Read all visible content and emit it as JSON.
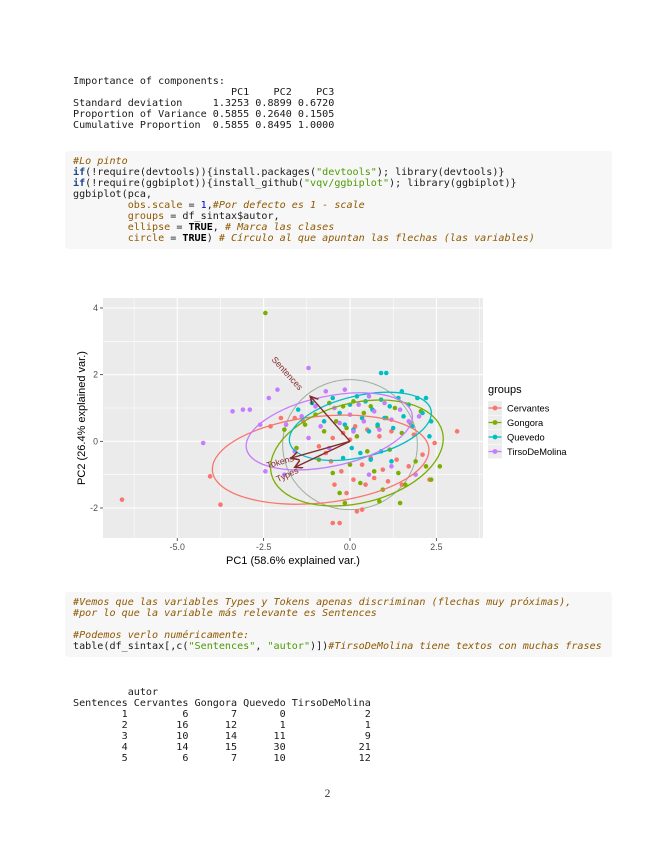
{
  "page": {
    "number": "2"
  },
  "colors": {
    "code_bg": "#f7f7f7",
    "code_keyword": "#204a87",
    "code_string": "#4e9a06",
    "code_comment": "#8f5902",
    "code_other": "#8f5902",
    "code_number": "#0000cf",
    "code_constant": "#000000"
  },
  "pca_summary": {
    "title": "Importance of components:",
    "components": [
      "PC1",
      "PC2",
      "PC3"
    ],
    "standard_deviation": [
      1.3253,
      0.8899,
      0.672
    ],
    "proportion_of_variance": [
      0.5855,
      0.264,
      0.1505
    ],
    "cumulative_proportion": [
      0.5855,
      0.8495,
      1.0
    ],
    "lines": [
      "Importance of components:",
      "                          PC1    PC2    PC3",
      "Standard deviation     1.3253 0.8899 0.6720",
      "Proportion of Variance 0.5855 0.2640 0.1505",
      "Cumulative Proportion  0.5855 0.8495 1.0000"
    ]
  },
  "code_block_1": {
    "lines": [
      [
        [
          "co",
          "#Lo pinto"
        ]
      ],
      [
        [
          "kw",
          "if"
        ],
        [
          "pl",
          "(!require(devtools)){install.packages("
        ],
        [
          "st",
          "\"devtools\""
        ],
        [
          "pl",
          "); library(devtools)}"
        ]
      ],
      [
        [
          "kw",
          "if"
        ],
        [
          "pl",
          "(!require(ggbiplot)){install_github("
        ],
        [
          "st",
          "\"vqv/ggbiplot\""
        ],
        [
          "pl",
          "); library(ggbiplot)}"
        ]
      ],
      [
        [
          "pl",
          "ggbiplot(pca,"
        ]
      ],
      [
        [
          "pl",
          "         "
        ],
        [
          "ot",
          "obs.scale"
        ],
        [
          "pl",
          " = "
        ],
        [
          "dv",
          "1"
        ],
        [
          "pl",
          ","
        ],
        [
          "co",
          "#Por defecto es 1 - scale"
        ]
      ],
      [
        [
          "pl",
          "         "
        ],
        [
          "ot",
          "groups"
        ],
        [
          "pl",
          " = df_sintax$autor,"
        ]
      ],
      [
        [
          "pl",
          "         "
        ],
        [
          "ot",
          "ellipse"
        ],
        [
          "pl",
          " = "
        ],
        [
          "cn",
          "TRUE"
        ],
        [
          "pl",
          ", "
        ],
        [
          "co",
          "# Marca las clases"
        ]
      ],
      [
        [
          "pl",
          "         "
        ],
        [
          "ot",
          "circle"
        ],
        [
          "pl",
          " = "
        ],
        [
          "cn",
          "TRUE"
        ],
        [
          "pl",
          ") "
        ],
        [
          "co",
          "# Círculo al que apuntan las flechas (las variables)"
        ]
      ]
    ]
  },
  "chart_data": {
    "type": "scatter",
    "title": "",
    "xlabel": "PC1 (58.6% explained var.)",
    "ylabel": "PC2 (26.4% explained var.)",
    "xlim": [
      -7.15,
      3.85
    ],
    "ylim": [
      -2.9,
      4.3
    ],
    "x_tick_labels": [
      "-5.0",
      "-2.5",
      "0.0",
      "2.5"
    ],
    "x_tick_values": [
      -5.0,
      -2.5,
      0.0,
      2.5
    ],
    "y_tick_labels": [
      "-2",
      "0",
      "2",
      "4"
    ],
    "y_tick_values": [
      -2,
      0,
      2,
      4
    ],
    "x_minor": [
      -6.25,
      -3.75,
      -1.25,
      1.25,
      3.75
    ],
    "y_minor": [
      -1,
      1,
      3
    ],
    "grid": true,
    "panel_bg": "#EBEBEB",
    "grid_color": "#FFFFFF",
    "tick_label_color": "#4D4D4D",
    "axis_title_color": "#000000",
    "legend": {
      "title": "groups",
      "position": "right",
      "key_bg": "#ECECEC"
    },
    "unit_circle": {
      "cx": 0,
      "cy": -0.1,
      "r": 1.95,
      "color": "#9FAE9F"
    },
    "loadings": {
      "color": "#842C2C",
      "arrows": [
        {
          "label": "Sentences",
          "x": -1.15,
          "y": 1.35,
          "label_x": -1.88,
          "label_y": 1.98,
          "label_angle": 48
        },
        {
          "label": "Tokens",
          "x": -1.7,
          "y": -0.5,
          "label_x": -2.0,
          "label_y": -0.7,
          "label_angle": -16
        },
        {
          "label": "Types",
          "x": -1.6,
          "y": -0.78,
          "label_x": -1.78,
          "label_y": -1.08,
          "label_angle": -25
        }
      ]
    },
    "series": [
      {
        "name": "Cervantes",
        "color": "#F8766D",
        "ellipse": {
          "cx": -0.85,
          "cy": -0.55,
          "rx": 3.15,
          "ry": 1.3,
          "angle": -6
        },
        "points": [
          [
            -6.6,
            -1.75
          ],
          [
            -4.05,
            -1.05
          ],
          [
            -3.75,
            -1.9
          ],
          [
            -2.3,
            0.45
          ],
          [
            -2.0,
            0.7
          ],
          [
            -1.6,
            0.7
          ],
          [
            -1.35,
            0.6
          ],
          [
            -0.9,
            -0.15
          ],
          [
            -0.7,
            -0.35
          ],
          [
            -0.55,
            -0.6
          ],
          [
            -0.5,
            0.1
          ],
          [
            -0.45,
            -1.3
          ],
          [
            -0.5,
            -2.45
          ],
          [
            -0.3,
            -2.45
          ],
          [
            -0.25,
            -0.9
          ],
          [
            -0.2,
            0.25
          ],
          [
            -0.1,
            -1.55
          ],
          [
            0.0,
            0.05
          ],
          [
            0.1,
            -1.15
          ],
          [
            0.15,
            0.45
          ],
          [
            0.2,
            -2.1
          ],
          [
            0.35,
            -2.05
          ],
          [
            0.35,
            -0.7
          ],
          [
            0.45,
            -1.3
          ],
          [
            0.5,
            0.35
          ],
          [
            0.6,
            -0.5
          ],
          [
            0.7,
            -1.1
          ],
          [
            0.85,
            0.15
          ],
          [
            0.95,
            -0.85
          ],
          [
            1.1,
            -1.2
          ],
          [
            1.2,
            0.3
          ],
          [
            1.35,
            -0.55
          ],
          [
            1.5,
            -1.3
          ],
          [
            1.7,
            -0.75
          ],
          [
            1.85,
            0.2
          ],
          [
            2.1,
            -0.4
          ],
          [
            2.3,
            -1.15
          ],
          [
            2.45,
            -0.05
          ],
          [
            3.1,
            0.3
          ]
        ]
      },
      {
        "name": "Gongora",
        "color": "#7CAE00",
        "ellipse": {
          "cx": 0.2,
          "cy": -0.35,
          "rx": 2.55,
          "ry": 1.5,
          "angle": -14
        },
        "points": [
          [
            -2.45,
            3.85
          ],
          [
            -1.9,
            0.35
          ],
          [
            -1.55,
            -0.2
          ],
          [
            -1.3,
            0.5
          ],
          [
            -1.0,
            0.8
          ],
          [
            -0.9,
            -0.55
          ],
          [
            -0.75,
            0.3
          ],
          [
            -0.6,
            1.15
          ],
          [
            -0.5,
            -0.95
          ],
          [
            -0.4,
            0.6
          ],
          [
            -0.3,
            -1.55
          ],
          [
            -0.2,
            1.05
          ],
          [
            -0.1,
            0.4
          ],
          [
            0.0,
            -0.7
          ],
          [
            0.1,
            1.2
          ],
          [
            0.2,
            0.15
          ],
          [
            0.3,
            -1.25
          ],
          [
            0.4,
            0.85
          ],
          [
            0.5,
            -0.3
          ],
          [
            0.6,
            1.05
          ],
          [
            0.7,
            -0.9
          ],
          [
            0.8,
            0.45
          ],
          [
            0.95,
            -1.45
          ],
          [
            1.05,
            0.7
          ],
          [
            1.15,
            -0.25
          ],
          [
            1.3,
            1.0
          ],
          [
            1.4,
            -0.95
          ],
          [
            1.5,
            0.25
          ],
          [
            1.6,
            -1.3
          ],
          [
            1.75,
            0.55
          ],
          [
            1.9,
            -0.6
          ],
          [
            2.05,
            0.9
          ],
          [
            2.2,
            -0.75
          ],
          [
            2.35,
            -1.15
          ],
          [
            2.6,
            -0.75
          ],
          [
            1.45,
            -1.85
          ],
          [
            0.85,
            -1.8
          ],
          [
            -0.15,
            -1.85
          ]
        ]
      },
      {
        "name": "Quevedo",
        "color": "#00BFC4",
        "ellipse": {
          "cx": 0.3,
          "cy": 0.45,
          "rx": 2.1,
          "ry": 0.92,
          "angle": -13
        },
        "points": [
          [
            0.9,
            2.05
          ],
          [
            1.05,
            2.05
          ],
          [
            -1.5,
            0.95
          ],
          [
            -1.1,
            1.15
          ],
          [
            -0.75,
            0.6
          ],
          [
            -0.5,
            1.3
          ],
          [
            -0.3,
            0.85
          ],
          [
            -0.15,
            0.5
          ],
          [
            0.0,
            1.1
          ],
          [
            0.1,
            0.35
          ],
          [
            0.2,
            1.35
          ],
          [
            0.35,
            0.7
          ],
          [
            0.45,
            1.2
          ],
          [
            0.55,
            0.3
          ],
          [
            0.65,
            0.95
          ],
          [
            0.8,
            0.5
          ],
          [
            0.9,
            1.25
          ],
          [
            1.0,
            0.7
          ],
          [
            1.15,
            1.05
          ],
          [
            1.25,
            0.4
          ],
          [
            1.4,
            1.3
          ],
          [
            1.5,
            1.5
          ],
          [
            1.55,
            0.75
          ],
          [
            1.7,
            1.1
          ],
          [
            1.8,
            0.45
          ],
          [
            1.95,
            1.3
          ],
          [
            2.1,
            0.85
          ],
          [
            2.2,
            1.3
          ],
          [
            2.35,
            0.6
          ],
          [
            0.3,
            -0.35
          ],
          [
            0.6,
            -0.55
          ],
          [
            0.9,
            -0.3
          ],
          [
            1.2,
            -0.6
          ],
          [
            -0.2,
            -0.5
          ],
          [
            0.05,
            -0.2
          ],
          [
            2.3,
            0.15
          ]
        ]
      },
      {
        "name": "TirsoDeMolina",
        "color": "#C77CFF",
        "ellipse": {
          "cx": -0.6,
          "cy": 0.3,
          "rx": 2.45,
          "ry": 1.05,
          "angle": -12
        },
        "points": [
          [
            -4.25,
            -0.05
          ],
          [
            -3.4,
            0.9
          ],
          [
            -3.1,
            0.95
          ],
          [
            -2.9,
            0.95
          ],
          [
            -2.45,
            -0.9
          ],
          [
            -2.35,
            1.3
          ],
          [
            -2.1,
            1.55
          ],
          [
            -1.2,
            2.2
          ],
          [
            -1.85,
            0.5
          ],
          [
            -1.6,
            -0.3
          ],
          [
            -1.4,
            0.75
          ],
          [
            -1.2,
            0.1
          ],
          [
            -1.0,
            1.05
          ],
          [
            -0.85,
            0.45
          ],
          [
            -0.7,
            1.5
          ],
          [
            -0.6,
            -0.2
          ],
          [
            -0.45,
            1.0
          ],
          [
            -0.3,
            0.55
          ],
          [
            -0.15,
            1.55
          ],
          [
            0.0,
            0.8
          ],
          [
            0.1,
            0.3
          ],
          [
            0.25,
            1.1
          ],
          [
            0.4,
            0.6
          ],
          [
            0.55,
            1.35
          ],
          [
            0.7,
            0.9
          ],
          [
            0.85,
            0.35
          ],
          [
            1.0,
            1.15
          ],
          [
            1.2,
            0.65
          ],
          [
            1.45,
            0.95
          ],
          [
            1.7,
            0.6
          ],
          [
            1.9,
            -1.0
          ],
          [
            1.2,
            -0.75
          ],
          [
            -1.9,
            -1.0
          ],
          [
            0.55,
            -1.0
          ],
          [
            2.0,
            0.75
          ],
          [
            -2.6,
            0.5
          ]
        ]
      }
    ]
  },
  "code_block_2": {
    "lines": [
      [
        [
          "co",
          "#Vemos que las variables Types y Tokens apenas discriminan (flechas muy próximas),"
        ]
      ],
      [
        [
          "co",
          "#por lo que la variable más relevante es Sentences"
        ]
      ],
      [
        [
          "pl",
          ""
        ]
      ],
      [
        [
          "co",
          "#Podemos verlo numéricamente:"
        ]
      ],
      [
        [
          "pl",
          "table(df_sintax[,c("
        ],
        [
          "st",
          "\"Sentences\""
        ],
        [
          "pl",
          ", "
        ],
        [
          "st",
          "\"autor\""
        ],
        [
          "pl",
          ")])"
        ],
        [
          "co",
          "#TirsoDeMolina tiene textos con muchas frases"
        ]
      ]
    ]
  },
  "sentences_table": {
    "group_header": "autor",
    "columns": [
      "Sentences",
      "Cervantes",
      "Gongora",
      "Quevedo",
      "TirsoDeMolina"
    ],
    "rows": [
      [
        1,
        6,
        7,
        0,
        2
      ],
      [
        2,
        16,
        12,
        1,
        1
      ],
      [
        3,
        10,
        14,
        11,
        9
      ],
      [
        4,
        14,
        15,
        30,
        21
      ],
      [
        5,
        6,
        7,
        10,
        12
      ]
    ],
    "lines": [
      "         autor",
      "Sentences Cervantes Gongora Quevedo TirsoDeMolina",
      "        1         6       7       0             2",
      "        2        16      12       1             1",
      "        3        10      14      11             9",
      "        4        14      15      30            21",
      "        5         6       7      10            12"
    ]
  }
}
